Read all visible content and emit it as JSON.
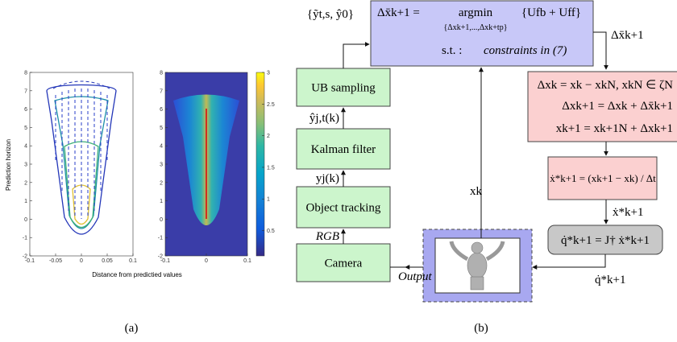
{
  "panel_a": {
    "contour_plot": {
      "xlim": [
        -0.1,
        0.1
      ],
      "ylim": [
        -2,
        8
      ],
      "xticks": [
        -0.1,
        -0.05,
        0,
        0.05,
        0.1
      ],
      "yticks": [
        -2,
        -1,
        0,
        1,
        2,
        3,
        4,
        5,
        6,
        7,
        8
      ]
    },
    "heatmap": {
      "xlim": [
        -0.1,
        0.1
      ],
      "ylim": [
        -2,
        8
      ],
      "xticks": [
        -0.1,
        0,
        0.1
      ],
      "yticks": [
        -2,
        -1,
        0,
        1,
        2,
        3,
        4,
        5,
        6,
        7,
        8
      ],
      "clim": [
        0.1,
        3
      ],
      "cticks": [
        0.5,
        1,
        1.5,
        2,
        2.5,
        3
      ]
    },
    "y_label": "Prediction horizon",
    "x_label": "Distance from predictied values",
    "caption": "(a)"
  },
  "panel_b": {
    "optimizer": {
      "lhs": "Δx̄k+1 =",
      "operator": "argmin",
      "operator_subscript": "{Δxk+1,...,Δxk+tp}",
      "objective": "{Ufb + Uff}",
      "st": "s.t. :",
      "constraints": "constraints in (7)"
    },
    "optimizer_input": "{ỹt,s, ŷ0}",
    "optimizer_output": "Δx̄k+1",
    "state_box": [
      "Δxk = xk − xkN,  xkN ∈ ζN",
      "Δxk+1 = Δxk + Δx̄k+1",
      "xk+1 = xk+1N + Δxk+1"
    ],
    "velocity_box": "ẋ*k+1 = (xk+1 − xk) / Δt",
    "velocity_label": "ẋ*k+1",
    "jacobian_box": "q̇*k+1 = J† ẋ*k+1",
    "joint_label": "q̇*k+1",
    "feedback_label": "xk",
    "output_label": "Output",
    "pipeline": [
      {
        "label": "UB sampling"
      },
      {
        "label": "Kalman filter",
        "output": "ŷj,t(k)"
      },
      {
        "label": "Object tracking",
        "output": "yj(k)"
      },
      {
        "label": "Camera",
        "output": "RGB"
      }
    ],
    "caption": "(b)"
  }
}
